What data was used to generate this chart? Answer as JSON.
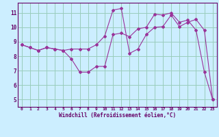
{
  "xlabel": "Windchill (Refroidissement éolien,°C)",
  "bg_color": "#cceeff",
  "line_color": "#993399",
  "marker_color": "#993399",
  "grid_color": "#99ccbb",
  "axis_color": "#660066",
  "tick_label_color": "#660066",
  "xlim": [
    -0.5,
    23.5
  ],
  "ylim": [
    4.5,
    11.7
  ],
  "xticks": [
    0,
    1,
    2,
    3,
    4,
    5,
    6,
    7,
    8,
    9,
    10,
    11,
    12,
    13,
    14,
    15,
    16,
    17,
    18,
    19,
    20,
    21,
    22,
    23
  ],
  "yticks": [
    5,
    6,
    7,
    8,
    9,
    10,
    11
  ],
  "series1_x": [
    0,
    1,
    2,
    3,
    4,
    5,
    6,
    7,
    8,
    9,
    10,
    11,
    12,
    13,
    14,
    15,
    16,
    17,
    18,
    19,
    20,
    21,
    22,
    23
  ],
  "series1_y": [
    8.8,
    8.6,
    8.4,
    8.6,
    8.5,
    8.4,
    7.8,
    6.9,
    6.9,
    7.3,
    7.3,
    9.5,
    9.6,
    9.35,
    9.9,
    10.0,
    10.9,
    10.85,
    11.0,
    10.35,
    10.5,
    9.8,
    6.9,
    5.0
  ],
  "series2_x": [
    0,
    1,
    2,
    3,
    4,
    5,
    6,
    7,
    8,
    9,
    10,
    11,
    12,
    13,
    14,
    15,
    16,
    17,
    18,
    19,
    20,
    21,
    22,
    23
  ],
  "series2_y": [
    8.8,
    8.6,
    8.4,
    8.6,
    8.5,
    8.4,
    8.5,
    8.5,
    8.5,
    8.8,
    9.4,
    11.2,
    11.3,
    8.2,
    8.5,
    9.5,
    10.0,
    10.05,
    10.85,
    10.05,
    10.35,
    10.55,
    9.8,
    5.0
  ]
}
